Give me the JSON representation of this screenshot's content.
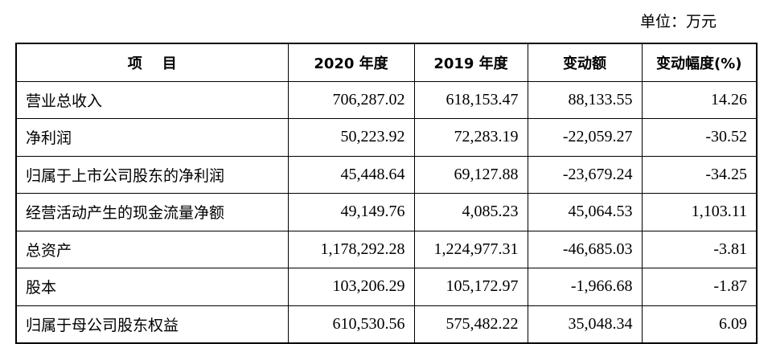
{
  "unit_label": "单位：万元",
  "table": {
    "headers": [
      "项    目",
      "2020 年度",
      "2019 年度",
      "变动额",
      "变动幅度(%)"
    ],
    "rows": [
      [
        "营业总收入",
        "706,287.02",
        "618,153.47",
        "88,133.55",
        "14.26"
      ],
      [
        "净利润",
        "50,223.92",
        "72,283.19",
        "-22,059.27",
        "-30.52"
      ],
      [
        "归属于上市公司股东的净利润",
        "45,448.64",
        "69,127.88",
        "-23,679.24",
        "-34.25"
      ],
      [
        "经营活动产生的现金流量净额",
        "49,149.76",
        "4,085.23",
        "45,064.53",
        "1,103.11"
      ],
      [
        "总资产",
        "1,178,292.28",
        "1,224,977.31",
        "-46,685.03",
        "-3.81"
      ],
      [
        "股本",
        "103,206.29",
        "105,172.97",
        "-1,966.68",
        "-1.87"
      ],
      [
        "归属于母公司股东权益",
        "610,530.56",
        "575,482.22",
        "35,048.34",
        "6.09"
      ]
    ]
  }
}
